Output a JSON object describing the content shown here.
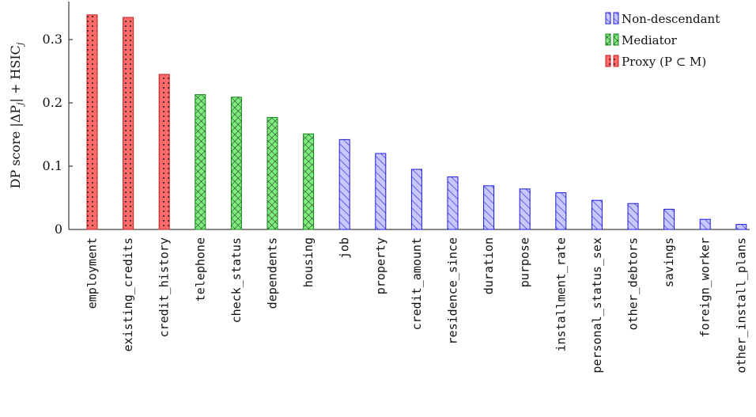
{
  "chart_data": {
    "type": "bar",
    "title": "",
    "xlabel": "",
    "ylabel": "DP score |ΔP",
    "ylabel_sub": "j",
    "ylabel_mid": "| + HSIC",
    "ylabel_sub2": "j",
    "ylim": [
      0,
      0.35
    ],
    "yticks": [
      "0",
      "0.1",
      "0.2",
      "0.3"
    ],
    "ytick_values": [
      0,
      0.1,
      0.2,
      0.3
    ],
    "grid": false,
    "legend_position": "top-right",
    "categories": [
      "employment",
      "existing_credits",
      "credit_history",
      "telephone",
      "check_status",
      "dependents",
      "housing",
      "job",
      "property",
      "credit_amount",
      "residence_since",
      "duration",
      "purpose",
      "installment_rate",
      "personal_status_sex",
      "other_debtors",
      "savings",
      "foreign_worker",
      "other_install_plans"
    ],
    "values": [
      0.339,
      0.335,
      0.245,
      0.213,
      0.209,
      0.177,
      0.151,
      0.142,
      0.12,
      0.095,
      0.083,
      0.069,
      0.064,
      0.058,
      0.046,
      0.041,
      0.032,
      0.016,
      0.008
    ],
    "groups": [
      "proxy",
      "proxy",
      "proxy",
      "mediator",
      "mediator",
      "mediator",
      "mediator",
      "nondesc",
      "nondesc",
      "nondesc",
      "nondesc",
      "nondesc",
      "nondesc",
      "nondesc",
      "nondesc",
      "nondesc",
      "nondesc",
      "nondesc",
      "nondesc"
    ],
    "legend": [
      {
        "key": "nondesc",
        "label": "Non-descendant"
      },
      {
        "key": "mediator",
        "label": "Mediator"
      },
      {
        "key": "proxy",
        "label": "Proxy (P ⊂ M)"
      }
    ],
    "colors": {
      "nondesc": {
        "fill": "#c8c8ff",
        "stroke": "#1a1adb"
      },
      "mediator": {
        "fill": "#7ded7d",
        "stroke": "#14801a"
      },
      "proxy": {
        "fill": "#ff6a6a",
        "stroke": "#c81e1e"
      }
    }
  }
}
